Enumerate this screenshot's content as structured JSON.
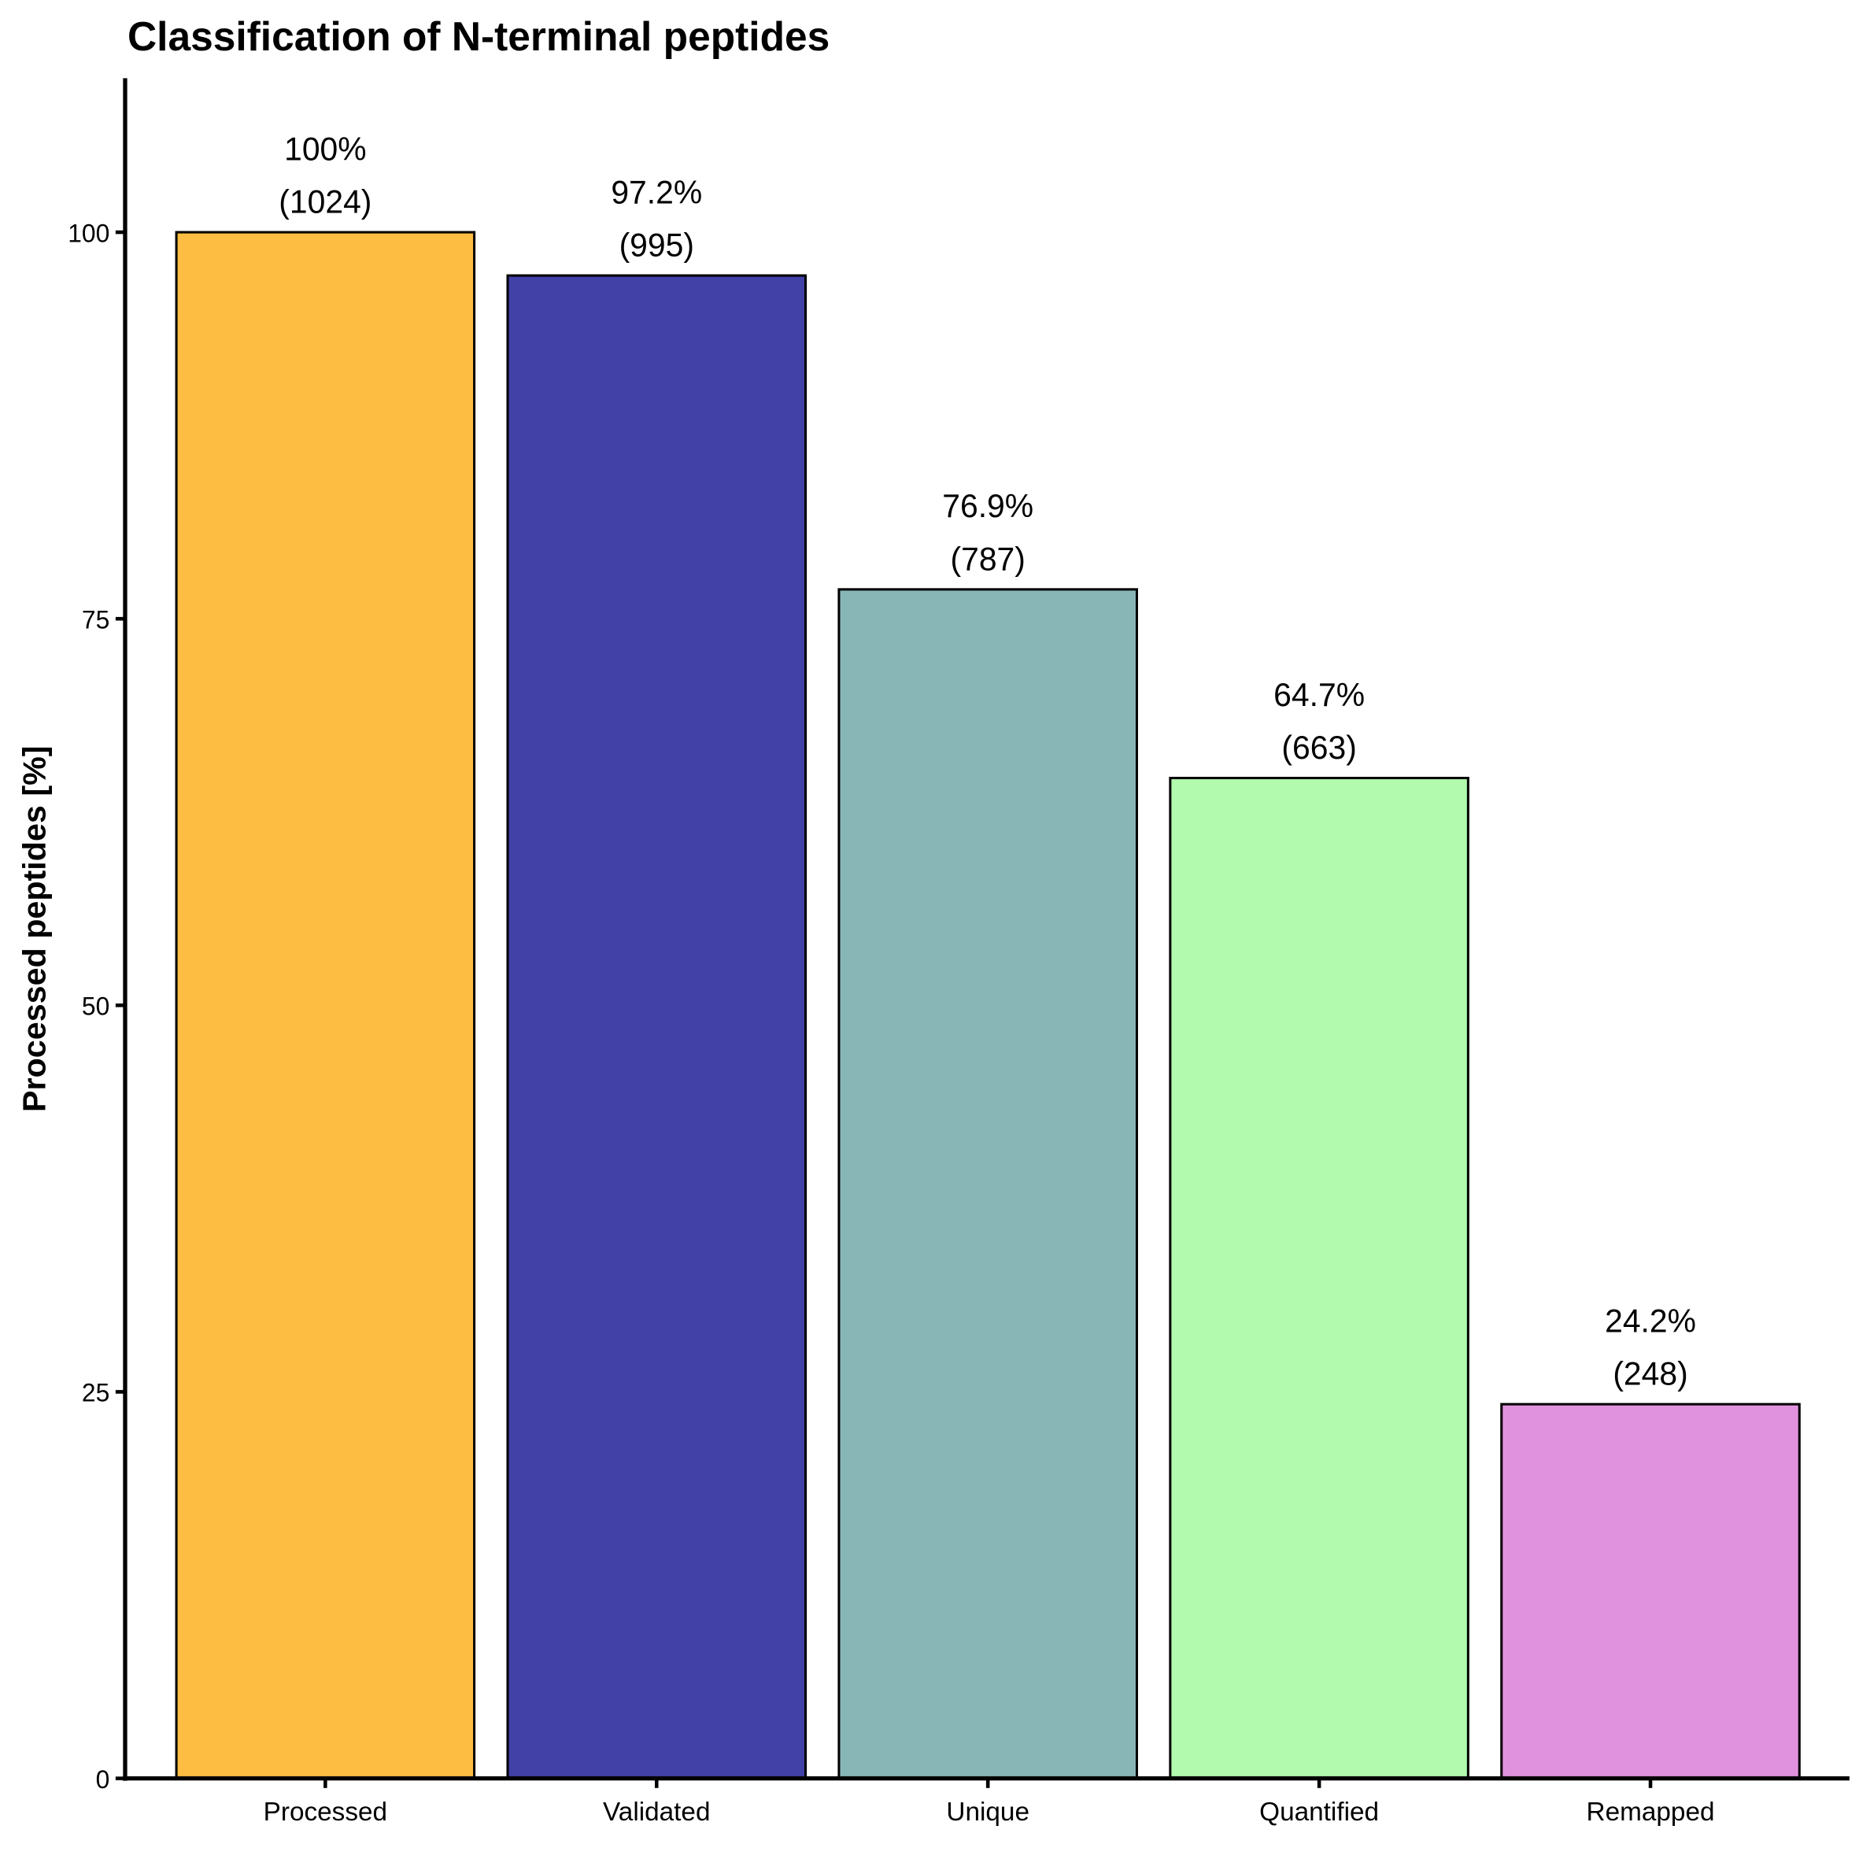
{
  "chart_data": {
    "type": "bar",
    "title": "Classification of N-terminal peptides",
    "xlabel": "",
    "ylabel": "Processed peptides [%]",
    "ylim": [
      0,
      110
    ],
    "yticks": [
      "0",
      "25",
      "50",
      "75",
      "100"
    ],
    "grid": false,
    "legend": "none",
    "categories": [
      "Processed",
      "Validated",
      "Unique",
      "Quantified",
      "Remapped"
    ],
    "values": [
      100,
      97.2,
      76.9,
      64.7,
      24.2
    ],
    "counts": [
      1024,
      995,
      787,
      663,
      248
    ],
    "percent_labels": [
      "100%",
      "97.2%",
      "76.9%",
      "64.7%",
      "24.2%"
    ],
    "count_labels": [
      "(1024)",
      "(995)",
      "(787)",
      "(663)",
      "(248)"
    ],
    "colors": [
      "#FDBD42",
      "#4141A8",
      "#88B6B7",
      "#B2FAAE",
      "#E192DE"
    ]
  }
}
